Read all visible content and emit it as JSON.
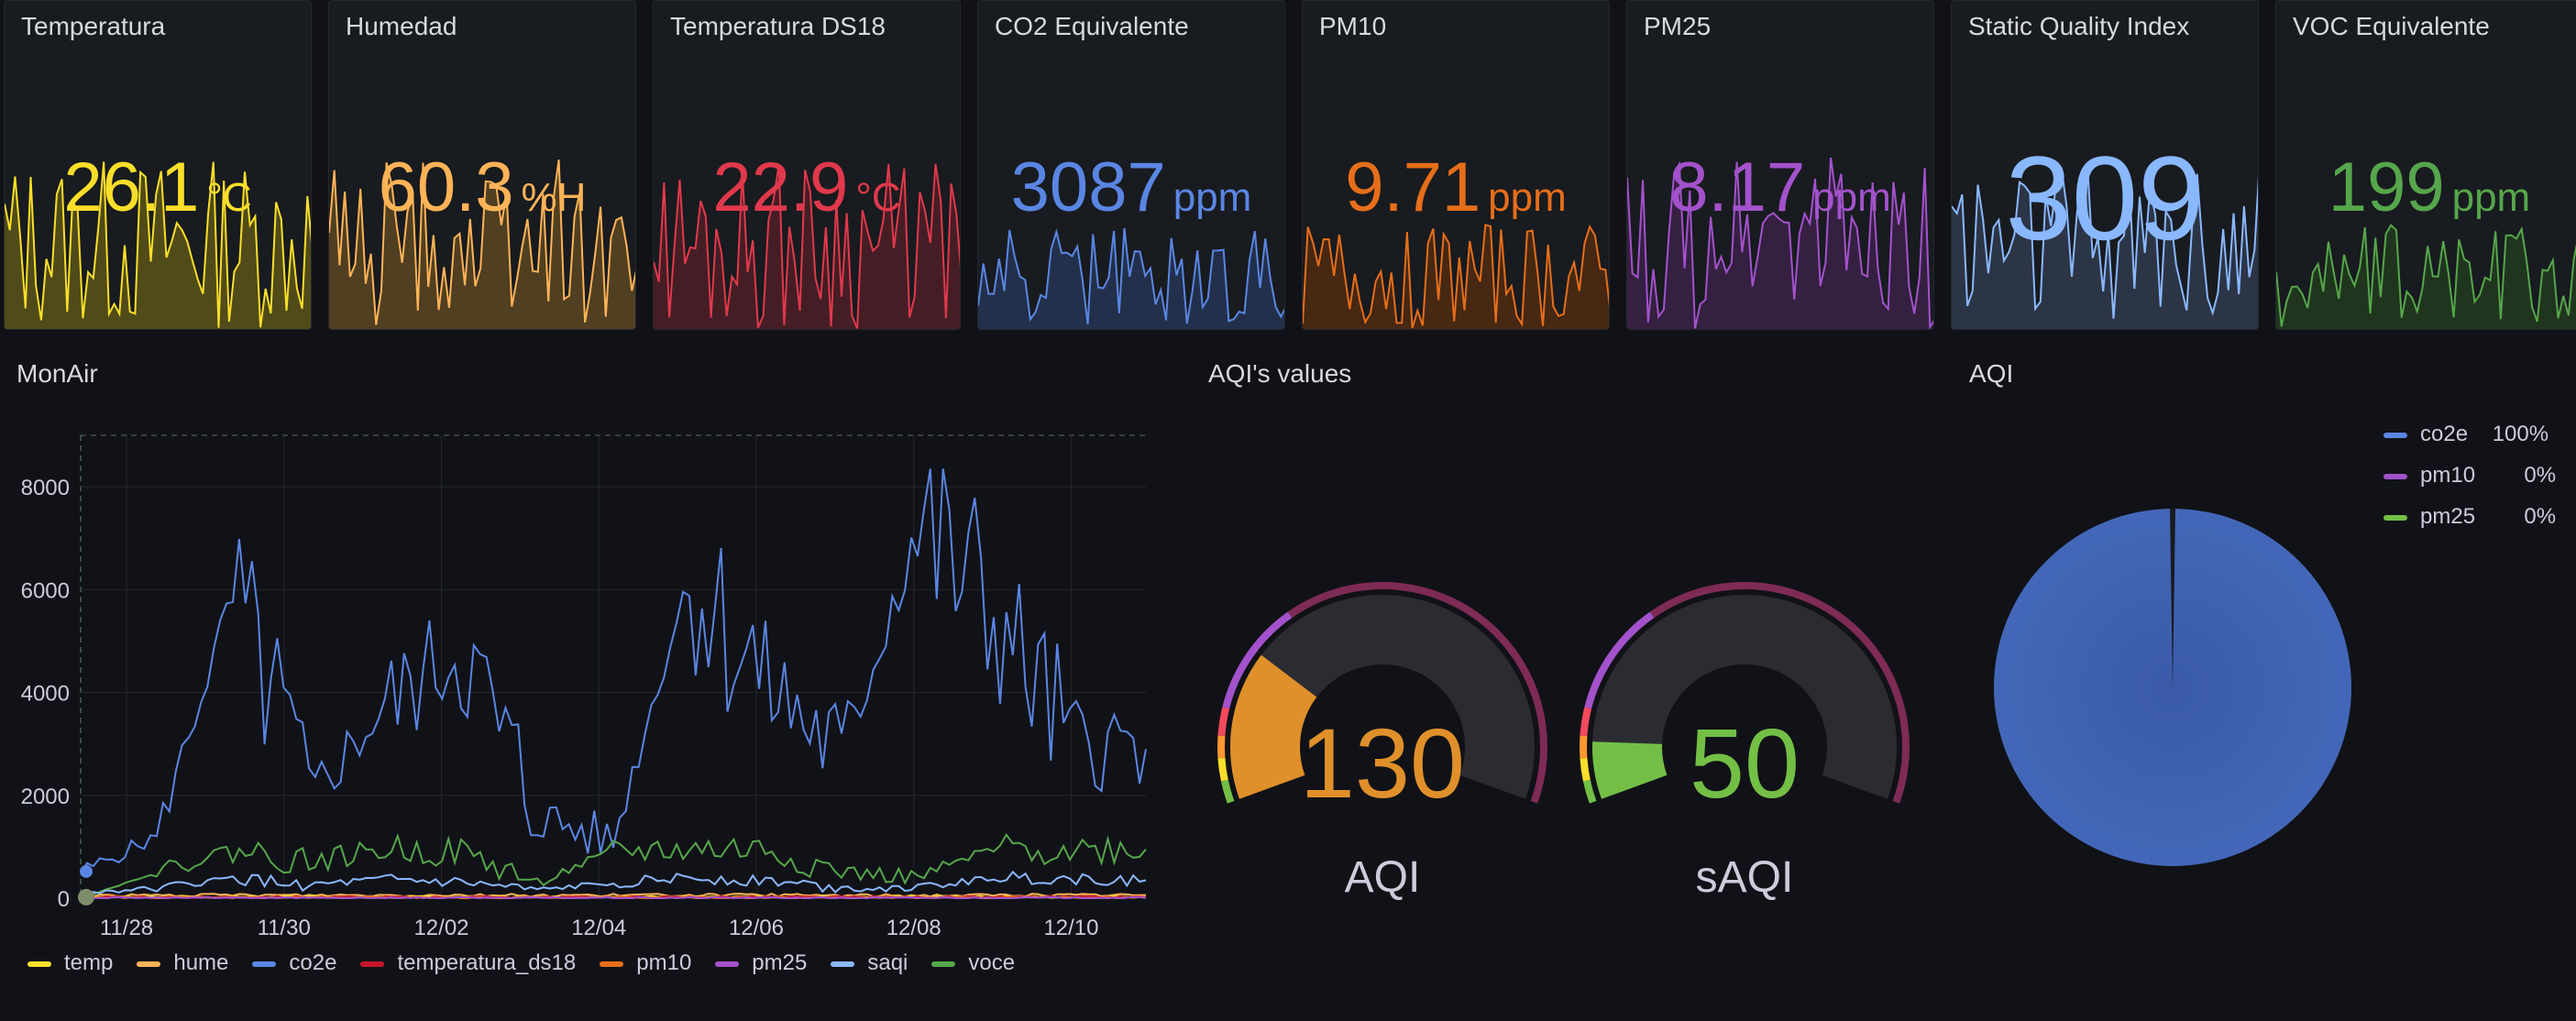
{
  "stats": [
    {
      "title": "Temperatura",
      "value": "26.1",
      "unit": "°C",
      "color": "#fade2a",
      "fill": "#5a5419"
    },
    {
      "title": "Humedad",
      "value": "60.3",
      "unit": "%H",
      "color": "#ffb357",
      "fill": "#5a4522"
    },
    {
      "title": "Temperatura DS18",
      "value": "22.9",
      "unit": "°C",
      "color": "#e0394b",
      "fill": "#4e1f27"
    },
    {
      "title": "CO2 Equivalente",
      "value": "3087",
      "unit": "ppm",
      "color": "#5a86e3",
      "fill": "#253454"
    },
    {
      "title": "PM10",
      "value": "9.71",
      "unit": "ppm",
      "color": "#e66e1a",
      "fill": "#4f2a12"
    },
    {
      "title": "PM25",
      "value": "8.17",
      "unit": "ppm",
      "color": "#a352cc",
      "fill": "#3b2148"
    },
    {
      "title": "Static Quality Index",
      "value": "309",
      "unit": "",
      "color": "#8ab8ff",
      "fill": "#303a4e"
    },
    {
      "title": "VOC Equivalente",
      "value": "199",
      "unit": "ppm",
      "color": "#56a64b",
      "fill": "#22391f"
    }
  ],
  "monair": {
    "title": "MonAir",
    "legend": [
      {
        "name": "temp",
        "color": "#fade2a"
      },
      {
        "name": "hume",
        "color": "#ffb357"
      },
      {
        "name": "co2e",
        "color": "#5a86e3"
      },
      {
        "name": "temperatura_ds18",
        "color": "#c4162a"
      },
      {
        "name": "pm10",
        "color": "#e66e1a"
      },
      {
        "name": "pm25",
        "color": "#a352cc"
      },
      {
        "name": "saqi",
        "color": "#8ab8ff"
      },
      {
        "name": "voce",
        "color": "#56a64b"
      }
    ]
  },
  "chart_data": {
    "type": "line",
    "title": "MonAir",
    "xlabel": "",
    "ylabel": "",
    "x_ticks": [
      "11/28",
      "11/30",
      "12/02",
      "12/04",
      "12/06",
      "12/08",
      "12/10"
    ],
    "y_ticks": [
      "0",
      "2000",
      "4000",
      "6000",
      "8000"
    ],
    "ylim": [
      0,
      9000
    ],
    "grid": true,
    "legend_position": "bottom",
    "x_dates": [
      "11/27",
      "11/28",
      "11/29",
      "11/30",
      "12/01",
      "12/02",
      "12/03",
      "12/04",
      "12/05",
      "12/06",
      "12/07",
      "12/08",
      "12/09",
      "12/10",
      "12/11"
    ],
    "series": [
      {
        "name": "co2e",
        "color": "#5a86e3",
        "values": [
          500,
          1200,
          5900,
          2000,
          3700,
          4900,
          1600,
          1100,
          6300,
          4200,
          2800,
          7300,
          5500,
          3100,
          2900
        ]
      },
      {
        "name": "voce",
        "color": "#56a64b",
        "values": [
          0,
          500,
          950,
          700,
          950,
          900,
          300,
          900,
          950,
          950,
          500,
          400,
          950,
          950,
          950
        ]
      },
      {
        "name": "saqi",
        "color": "#8ab8ff",
        "values": [
          100,
          200,
          380,
          250,
          350,
          300,
          150,
          300,
          400,
          350,
          200,
          200,
          400,
          380,
          350
        ]
      },
      {
        "name": "hume",
        "color": "#ffb357",
        "values": [
          50,
          55,
          60,
          58,
          60,
          62,
          55,
          58,
          60,
          60,
          55,
          56,
          60,
          60,
          60
        ]
      },
      {
        "name": "temp",
        "color": "#fade2a",
        "values": [
          22,
          23,
          25,
          24,
          26,
          25,
          23,
          24,
          26,
          25,
          24,
          24,
          26,
          26,
          26
        ]
      },
      {
        "name": "temperatura_ds18",
        "color": "#c4162a",
        "values": [
          20,
          21,
          23,
          22,
          23,
          22,
          21,
          22,
          23,
          23,
          22,
          22,
          23,
          23,
          23
        ]
      },
      {
        "name": "pm10",
        "color": "#e66e1a",
        "values": [
          8,
          9,
          10,
          9,
          11,
          10,
          8,
          9,
          10,
          9,
          8,
          9,
          10,
          10,
          10
        ]
      },
      {
        "name": "pm25",
        "color": "#a352cc",
        "values": [
          6,
          7,
          8,
          7,
          9,
          8,
          7,
          8,
          8,
          7,
          7,
          7,
          8,
          8,
          8
        ]
      }
    ]
  },
  "gauges": {
    "title": "AQI's values",
    "items": [
      {
        "label": "AQI",
        "value": "130",
        "value_color": "#e0902a",
        "fraction": 0.26
      },
      {
        "label": "sAQI",
        "value": "50",
        "value_color": "#73bf46",
        "fraction": 0.1
      }
    ]
  },
  "pie": {
    "title": "AQI",
    "color": "#4367b8",
    "legend": [
      {
        "name": "co2e",
        "pct": "100%",
        "color": "#5a86e3"
      },
      {
        "name": "pm10",
        "pct": "0%",
        "color": "#a352cc"
      },
      {
        "name": "pm25",
        "pct": "0%",
        "color": "#73bf46"
      }
    ]
  }
}
